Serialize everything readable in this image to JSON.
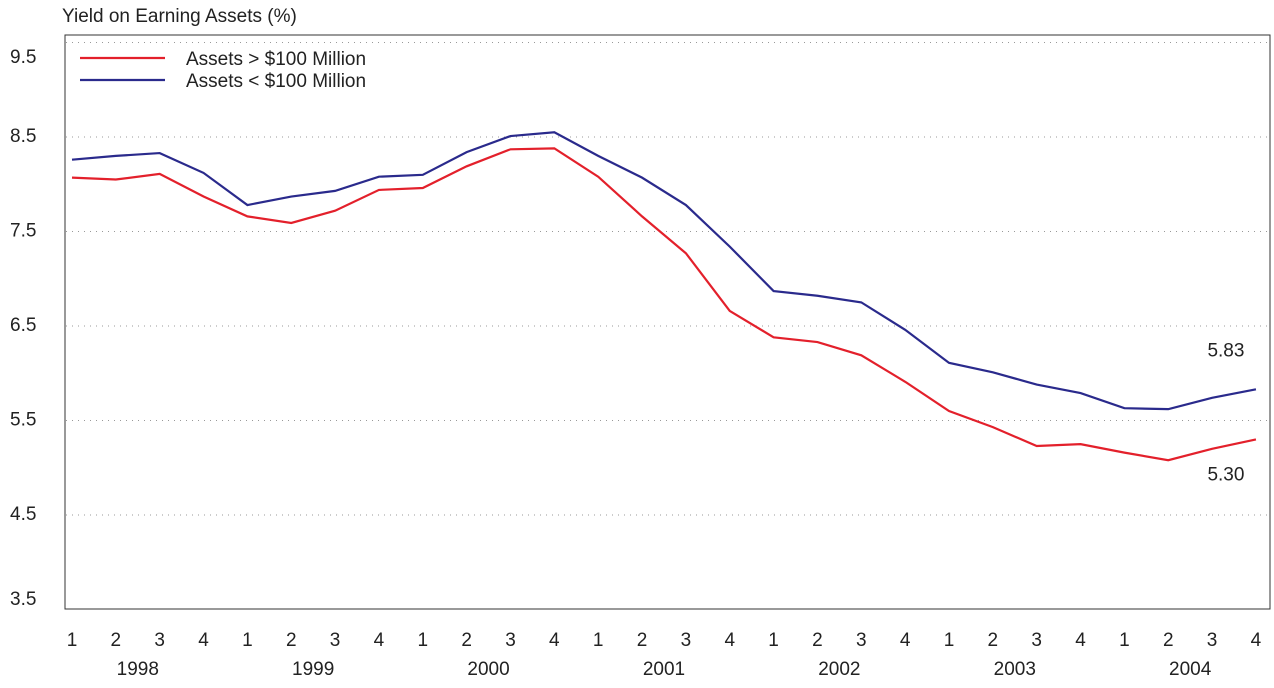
{
  "chart_data": {
    "type": "line",
    "y_label": "Yield on Earning Assets (%)",
    "categories": [
      "1",
      "2",
      "3",
      "4",
      "1",
      "2",
      "3",
      "4",
      "1",
      "2",
      "3",
      "4",
      "1",
      "2",
      "3",
      "4",
      "1",
      "2",
      "3",
      "4",
      "1",
      "2",
      "3",
      "4",
      "1",
      "2",
      "3",
      "4"
    ],
    "years": [
      "1998",
      "1999",
      "2000",
      "2001",
      "2002",
      "2003",
      "2004"
    ],
    "series": [
      {
        "name": "Assets > $100 Million",
        "color": "#e3202b",
        "values": [
          8.07,
          8.05,
          8.11,
          7.87,
          7.66,
          7.59,
          7.72,
          7.94,
          7.96,
          8.19,
          8.37,
          8.38,
          8.08,
          7.66,
          7.27,
          6.66,
          6.38,
          6.33,
          6.19,
          5.91,
          5.6,
          5.43,
          5.23,
          5.25,
          5.16,
          5.08,
          5.2,
          5.3
        ],
        "value_labels": [
          null,
          null,
          null,
          null,
          null,
          null,
          null,
          null,
          null,
          null,
          null,
          null,
          null,
          null,
          null,
          null,
          null,
          null,
          null,
          null,
          null,
          null,
          null,
          null,
          null,
          null,
          null,
          "5.30"
        ]
      },
      {
        "name": "Assets < $100 Million",
        "color": "#2a2a8c",
        "values": [
          8.26,
          8.3,
          8.33,
          8.12,
          7.78,
          7.87,
          7.93,
          8.08,
          8.1,
          8.34,
          8.51,
          8.55,
          8.3,
          8.07,
          7.78,
          7.34,
          6.87,
          6.82,
          6.75,
          6.46,
          6.11,
          6.01,
          5.88,
          5.79,
          5.63,
          5.62,
          5.74,
          5.83
        ],
        "value_labels": [
          null,
          null,
          null,
          null,
          null,
          null,
          null,
          null,
          null,
          null,
          null,
          null,
          null,
          null,
          null,
          null,
          null,
          null,
          null,
          null,
          null,
          null,
          null,
          null,
          null,
          null,
          null,
          "5.83"
        ]
      }
    ],
    "ylim": [
      3.5,
      9.5
    ],
    "yticks": [
      3.5,
      4.5,
      5.5,
      6.5,
      7.5,
      8.5,
      9.5
    ],
    "grid": true,
    "legend": "top-left"
  }
}
